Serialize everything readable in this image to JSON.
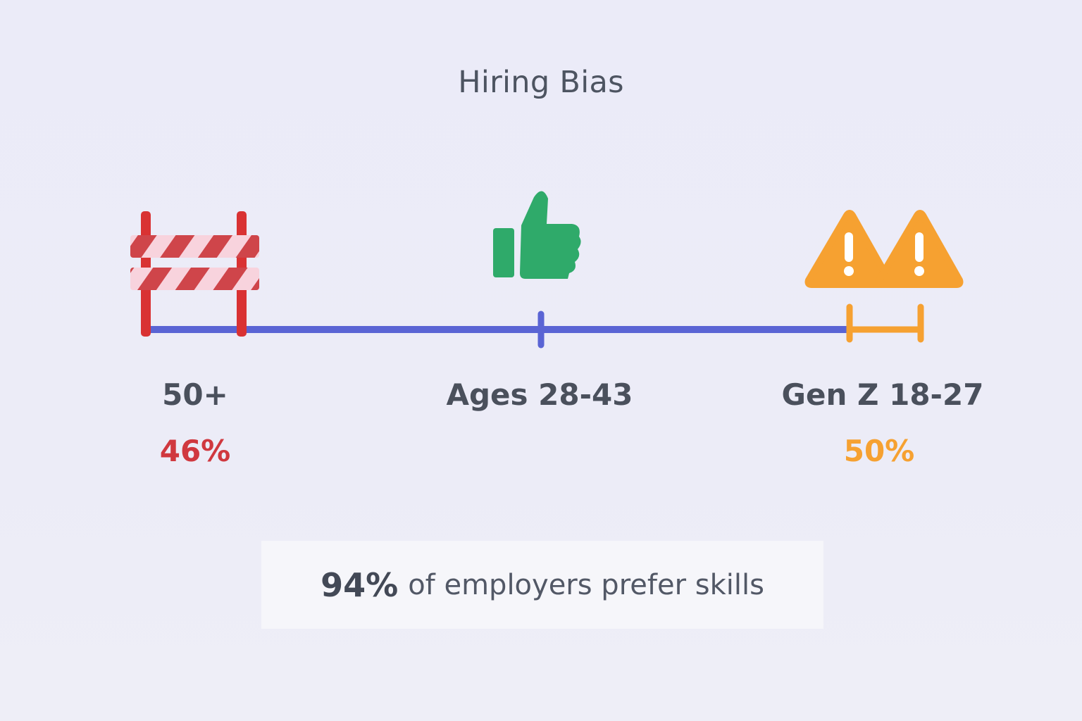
{
  "title": "Hiring Bias",
  "groups": [
    {
      "label": "50+",
      "percent": "46%",
      "icon": "barrier-icon",
      "color": "#d0383f"
    },
    {
      "label": "Ages 28-43",
      "percent": "",
      "icon": "thumbs-up-icon",
      "color": "#2faa6a"
    },
    {
      "label": "Gen Z 18-27",
      "percent": "50%",
      "icon": "warning-icon",
      "color": "#f6a131"
    }
  ],
  "timeline_color": "#5a64d4",
  "callout": {
    "highlight": "94%",
    "text": "of employers prefer skills"
  }
}
